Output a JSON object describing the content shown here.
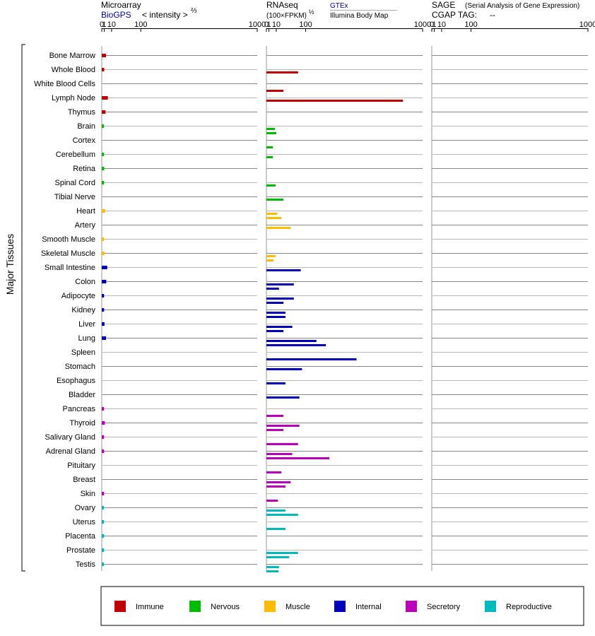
{
  "colors": {
    "Immune": "#c00000",
    "Nervous": "#00bb00",
    "Muscle": "#ffbb00",
    "Internal": "#0000bb",
    "Secretory": "#bb00bb",
    "Reproductive": "#00bbbb"
  },
  "y_axis_label": "Major Tissues",
  "legend": [
    "Immune",
    "Nervous",
    "Muscle",
    "Internal",
    "Secretory",
    "Reproductive"
  ],
  "panels": {
    "microarray": {
      "title": "Microarray",
      "source_link": "BioGPS",
      "unit_text": "< intensity >",
      "unit_sup": "⅔",
      "ticks": [
        "0",
        "1",
        "10",
        "100",
        "1000"
      ]
    },
    "rnaseq": {
      "title": "RNAseq",
      "unit_text": "(100×FPKM)",
      "unit_sup": "½",
      "source_link": "GTEx",
      "source_sub": "Illumina Body Map",
      "ticks": [
        "0",
        "1",
        "10",
        "100",
        "1000"
      ]
    },
    "sage": {
      "title": "SAGE",
      "subtitle": "(Serial Analysis of Gene Expression)",
      "tag_label": "CGAP TAG:",
      "tag_value": "--",
      "ticks": [
        "0",
        "1",
        "10",
        "100",
        "1000"
      ]
    }
  },
  "chart_data": {
    "type": "bar",
    "orientation": "horizontal",
    "scale": "power (0, 1, 10, 100, 1000 axis)",
    "xlim": [
      0,
      1000
    ],
    "categories": [
      "Bone Marrow",
      "Whole Blood",
      "White Blood Cells",
      "Lymph Node",
      "Thymus",
      "Brain",
      "Cortex",
      "Cerebellum",
      "Retina",
      "Spinal Cord",
      "Tibial Nerve",
      "Heart",
      "Artery",
      "Smooth Muscle",
      "Skeletal Muscle",
      "Small Intestine",
      "Colon",
      "Adipocyte",
      "Kidney",
      "Liver",
      "Lung",
      "Spleen",
      "Stomach",
      "Esophagus",
      "Bladder",
      "Pancreas",
      "Thyroid",
      "Salivary Gland",
      "Adrenal Gland",
      "Pituitary",
      "Breast",
      "Skin",
      "Ovary",
      "Uterus",
      "Placenta",
      "Prostate",
      "Testis"
    ],
    "groups": [
      "Immune",
      "Immune",
      "Immune",
      "Immune",
      "Immune",
      "Nervous",
      "Nervous",
      "Nervous",
      "Nervous",
      "Nervous",
      "Nervous",
      "Muscle",
      "Muscle",
      "Muscle",
      "Muscle",
      "Internal",
      "Internal",
      "Internal",
      "Internal",
      "Internal",
      "Internal",
      "Internal",
      "Internal",
      "Internal",
      "Internal",
      "Secretory",
      "Secretory",
      "Secretory",
      "Secretory",
      "Secretory",
      "Secretory",
      "Secretory",
      "Reproductive",
      "Reproductive",
      "Reproductive",
      "Reproductive",
      "Reproductive"
    ],
    "series": [
      {
        "name": "Microarray (BioGPS)",
        "values": [
          2.5,
          1.0,
          null,
          4.5,
          2.0,
          0.8,
          null,
          0.8,
          1.0,
          0.9,
          null,
          1.7,
          null,
          0.9,
          1.1,
          3.8,
          2.7,
          0.9,
          0.9,
          1.2,
          2.5,
          null,
          null,
          null,
          null,
          0.9,
          1.5,
          0.9,
          0.9,
          null,
          null,
          0.9,
          0.8,
          0.8,
          0.9,
          0.9,
          0.8
        ]
      },
      {
        "name": "RNAseq (GTEx)",
        "values": [
          null,
          70,
          null,
          800,
          null,
          8,
          null,
          5,
          null,
          9,
          25,
          12,
          45,
          null,
          9,
          80,
          55,
          55,
          30,
          50,
          150,
          null,
          85,
          30,
          75,
          null,
          75,
          null,
          50,
          null,
          45,
          null,
          30,
          null,
          null,
          70,
          15
        ]
      },
      {
        "name": "RNAseq (Illumina Body Map)",
        "values": [
          null,
          null,
          25,
          null,
          null,
          10,
          5,
          null,
          null,
          null,
          null,
          20,
          null,
          null,
          6,
          null,
          15,
          25,
          30,
          25,
          200,
          400,
          null,
          null,
          null,
          25,
          25,
          70,
          220,
          20,
          30,
          13,
          70,
          30,
          null,
          40,
          14
        ]
      },
      {
        "name": "SAGE (CGAP)",
        "values": [
          null,
          null,
          null,
          null,
          null,
          null,
          null,
          null,
          null,
          null,
          null,
          null,
          null,
          null,
          null,
          null,
          null,
          null,
          null,
          null,
          null,
          null,
          null,
          null,
          null,
          null,
          null,
          null,
          null,
          null,
          null,
          null,
          null,
          null,
          null,
          null,
          null
        ]
      }
    ]
  }
}
